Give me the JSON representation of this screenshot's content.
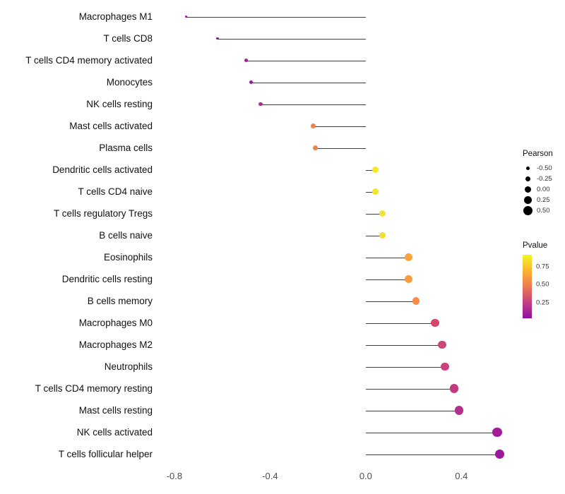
{
  "chart_data": {
    "type": "scatter",
    "style": "lollipop",
    "title": "",
    "xlabel": "",
    "ylabel": "",
    "grid": false,
    "legend_position": "right",
    "x_domain": [
      -0.85,
      0.65
    ],
    "x_ticks": [
      {
        "value": -0.8,
        "label": "-0.8"
      },
      {
        "value": -0.4,
        "label": "-0.4"
      },
      {
        "value": 0.0,
        "label": "0.0"
      },
      {
        "value": 0.4,
        "label": "0.4"
      }
    ],
    "size_scale": {
      "a": 4.6,
      "b": 4.2
    },
    "points": [
      {
        "label": "Macrophages M1",
        "pearson": -0.75,
        "pvalue": 0.1,
        "color": "#9C179E"
      },
      {
        "label": "T cells CD8",
        "pearson": -0.62,
        "pvalue": 0.12,
        "color": "#8F0DA4"
      },
      {
        "label": "T cells CD4 memory activated",
        "pearson": -0.5,
        "pvalue": 0.18,
        "color": "#A62098"
      },
      {
        "label": "Monocytes",
        "pearson": -0.48,
        "pvalue": 0.15,
        "color": "#9C179E"
      },
      {
        "label": "NK cells resting",
        "pearson": -0.44,
        "pvalue": 0.22,
        "color": "#B12A90"
      },
      {
        "label": "Mast cells activated",
        "pearson": -0.22,
        "pvalue": 0.55,
        "color": "#F2844B"
      },
      {
        "label": "Plasma cells",
        "pearson": -0.21,
        "pvalue": 0.55,
        "color": "#F2844B"
      },
      {
        "label": "Dendritic cells activated",
        "pearson": 0.04,
        "pvalue": 0.85,
        "color": "#F6E726"
      },
      {
        "label": "T cells CD4 naive",
        "pearson": 0.04,
        "pvalue": 0.85,
        "color": "#F6E726"
      },
      {
        "label": "T cells regulatory Tregs",
        "pearson": 0.07,
        "pvalue": 0.8,
        "color": "#F3E13C"
      },
      {
        "label": "B cells naive",
        "pearson": 0.07,
        "pvalue": 0.78,
        "color": "#F2DE33"
      },
      {
        "label": "Eosinophils",
        "pearson": 0.18,
        "pvalue": 0.55,
        "color": "#FBA238"
      },
      {
        "label": "Dendritic cells resting",
        "pearson": 0.18,
        "pvalue": 0.52,
        "color": "#F99A3E"
      },
      {
        "label": "B cells memory",
        "pearson": 0.21,
        "pvalue": 0.5,
        "color": "#F98C45"
      },
      {
        "label": "Macrophages M0",
        "pearson": 0.29,
        "pvalue": 0.35,
        "color": "#D6456C"
      },
      {
        "label": "Macrophages M2",
        "pearson": 0.32,
        "pvalue": 0.32,
        "color": "#CC4778"
      },
      {
        "label": "Neutrophils",
        "pearson": 0.33,
        "pvalue": 0.3,
        "color": "#CA417B"
      },
      {
        "label": "T cells CD4 memory resting",
        "pearson": 0.37,
        "pvalue": 0.27,
        "color": "#C13A80"
      },
      {
        "label": "Mast cells resting",
        "pearson": 0.39,
        "pvalue": 0.22,
        "color": "#B42E8D"
      },
      {
        "label": "NK cells activated",
        "pearson": 0.55,
        "pvalue": 0.1,
        "color": "#A31D9B"
      },
      {
        "label": "T cells follicular helper",
        "pearson": 0.56,
        "pvalue": 0.1,
        "color": "#9C179E"
      }
    ]
  },
  "legend_pearson": {
    "title": "Pearson",
    "items": [
      {
        "value": -0.5,
        "label": "-0.50"
      },
      {
        "value": -0.25,
        "label": "-0.25"
      },
      {
        "value": 0.0,
        "label": "0.00"
      },
      {
        "value": 0.25,
        "label": "0.25"
      },
      {
        "value": 0.5,
        "label": "0.50"
      }
    ]
  },
  "legend_pvalue": {
    "title": "Pvalue",
    "domain": [
      0.92,
      0.03
    ],
    "gradient": [
      "#F0F921",
      "#FDB32F",
      "#ED7953",
      "#C5407E",
      "#8F0DA4"
    ],
    "ticks": [
      {
        "value": 0.75,
        "label": "0.75"
      },
      {
        "value": 0.5,
        "label": "0.50"
      },
      {
        "value": 0.25,
        "label": "0.25"
      }
    ]
  }
}
